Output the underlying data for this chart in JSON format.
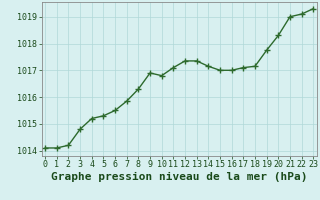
{
  "x": [
    0,
    1,
    2,
    3,
    4,
    5,
    6,
    7,
    8,
    9,
    10,
    11,
    12,
    13,
    14,
    15,
    16,
    17,
    18,
    19,
    20,
    21,
    22,
    23
  ],
  "y": [
    1014.1,
    1014.1,
    1014.2,
    1014.8,
    1015.2,
    1015.3,
    1015.5,
    1015.85,
    1016.3,
    1016.9,
    1016.8,
    1017.1,
    1017.35,
    1017.35,
    1017.15,
    1017.0,
    1017.0,
    1017.1,
    1017.15,
    1017.75,
    1018.3,
    1019.0,
    1019.1,
    1019.3
  ],
  "line_color": "#2d6a2d",
  "marker": "+",
  "marker_size": 4,
  "marker_linewidth": 1.0,
  "bg_color": "#d8f0f0",
  "grid_color": "#b0d8d8",
  "spine_color": "#888888",
  "title": "Graphe pression niveau de la mer (hPa)",
  "ylabel_ticks": [
    1014,
    1015,
    1016,
    1017,
    1018,
    1019
  ],
  "xlim": [
    -0.3,
    23.3
  ],
  "ylim": [
    1013.8,
    1019.55
  ],
  "title_fontsize": 8,
  "tick_fontsize": 6,
  "line_width": 1.0,
  "title_color": "#1a4a1a",
  "tick_color": "#1a4a1a"
}
